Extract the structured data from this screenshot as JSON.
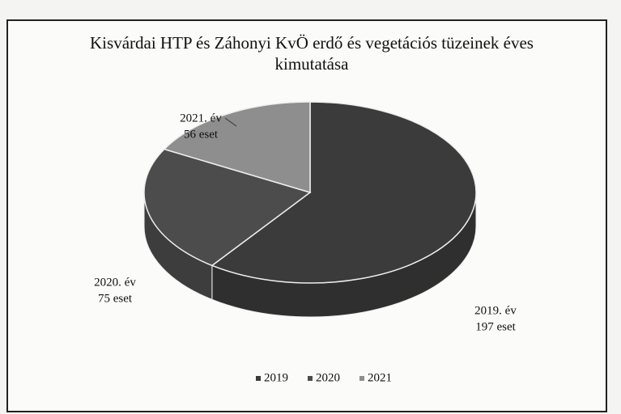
{
  "chart_data": {
    "type": "pie3d",
    "title": "Kisvárdai HTP és Záhonyi KvÖ erdő és vegetációs tüzeinek éves kimutatása",
    "categories": [
      "2019",
      "2020",
      "2021"
    ],
    "slice_labels": [
      "2019. év",
      "2020. év",
      "2021. év"
    ],
    "values": [
      197,
      75,
      56
    ],
    "value_labels": [
      "197 eset",
      "75 eset",
      "56 eset"
    ],
    "colors": [
      "#3b3b3b",
      "#4c4c4c",
      "#8e8e8e"
    ],
    "legend": "bottom"
  }
}
